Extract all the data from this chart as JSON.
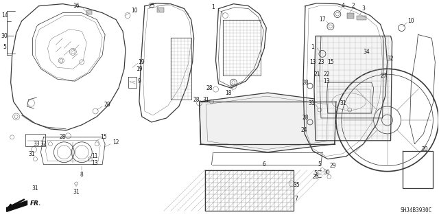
{
  "figure_width": 6.4,
  "figure_height": 3.19,
  "dpi": 100,
  "bg": "#ffffff",
  "lc": "#3a3a3a",
  "lc2": "#5a5a5a",
  "diagram_code": "SHJ4B3930C",
  "lw_main": 0.9,
  "lw_thin": 0.55,
  "lw_hair": 0.3,
  "fs_label": 5.5
}
